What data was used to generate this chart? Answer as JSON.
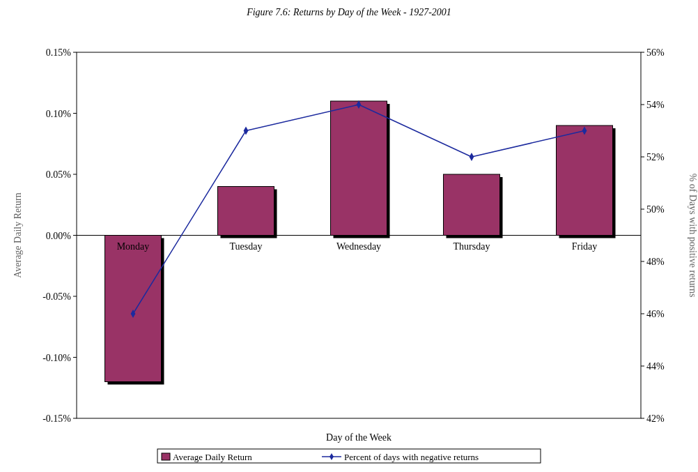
{
  "chart_data": {
    "type": "bar",
    "title": "Figure 7.6: Returns by Day of the Week - 1927-2001",
    "xlabel": "Day of the Week",
    "ylabel": "Average Daily Return",
    "y2label": "% of Days with positive returns",
    "categories": [
      "Monday",
      "Tuesday",
      "Wednesday",
      "Thursday",
      "Friday"
    ],
    "series": [
      {
        "name": "Average Daily Return",
        "color": "#993366",
        "values": [
          -0.12,
          0.04,
          0.11,
          0.05,
          0.09
        ]
      },
      {
        "name": "Percent of days with negative returns",
        "type": "line",
        "axis": "y2",
        "color": "#1c2a9e",
        "marker": "diamond",
        "values": [
          46,
          53,
          54,
          52,
          53
        ]
      }
    ],
    "ylim": [
      -0.15,
      0.15
    ],
    "yticks": [
      {
        "value": -0.15,
        "label": "-0.15%"
      },
      {
        "value": -0.1,
        "label": "-0.10%"
      },
      {
        "value": -0.05,
        "label": "-0.05%"
      },
      {
        "value": 0,
        "label": "0.00%"
      },
      {
        "value": 0.05,
        "label": "0.05%"
      },
      {
        "value": 0.1,
        "label": "0.10%"
      },
      {
        "value": 0.15,
        "label": "0.15%"
      }
    ],
    "y2lim": [
      42,
      56
    ],
    "y2ticks": [
      {
        "value": 42,
        "label": "42%"
      },
      {
        "value": 44,
        "label": "44%"
      },
      {
        "value": 46,
        "label": "46%"
      },
      {
        "value": 48,
        "label": "48%"
      },
      {
        "value": 50,
        "label": "50%"
      },
      {
        "value": 52,
        "label": "52%"
      },
      {
        "value": 54,
        "label": "54%"
      },
      {
        "value": 56,
        "label": "56%"
      }
    ],
    "legend": "bottom",
    "grid": false
  }
}
